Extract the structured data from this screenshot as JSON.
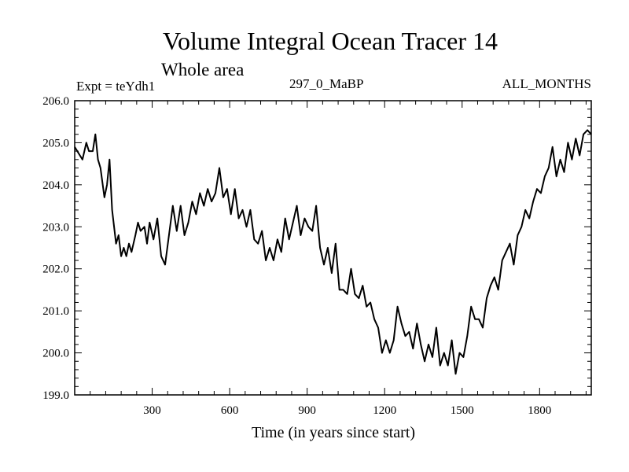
{
  "chart_data": {
    "type": "line",
    "title": "Volume Integral Ocean Tracer 14",
    "subtitle": "Whole area",
    "expt_label": "Expt = teYdh1",
    "period_label": "297_0_MaBP",
    "months_label": "ALL_MONTHS",
    "xlabel": "Time (in years since start)",
    "ylabel": "",
    "xlim": [
      0,
      2000
    ],
    "ylim": [
      199.0,
      206.0
    ],
    "xticks": [
      300,
      600,
      900,
      1200,
      1500,
      1800
    ],
    "xtick_labels": [
      "300",
      "600",
      "900",
      "1200",
      "1500",
      "1800"
    ],
    "yticks": [
      199.0,
      200.0,
      201.0,
      202.0,
      203.0,
      204.0,
      205.0,
      206.0
    ],
    "ytick_labels": [
      "199.0",
      "200.0",
      "201.0",
      "202.0",
      "203.0",
      "204.0",
      "205.0",
      "206.0"
    ],
    "series": [
      {
        "name": "Tracer 14",
        "x": [
          0,
          20,
          30,
          45,
          55,
          70,
          80,
          90,
          100,
          115,
          125,
          135,
          145,
          160,
          170,
          180,
          190,
          200,
          210,
          220,
          235,
          245,
          255,
          270,
          280,
          290,
          305,
          320,
          335,
          350,
          365,
          380,
          395,
          410,
          425,
          440,
          455,
          470,
          485,
          500,
          515,
          530,
          545,
          560,
          575,
          590,
          605,
          620,
          635,
          650,
          665,
          680,
          695,
          710,
          725,
          740,
          755,
          770,
          785,
          800,
          815,
          830,
          845,
          860,
          875,
          890,
          905,
          920,
          935,
          950,
          965,
          980,
          995,
          1010,
          1025,
          1040,
          1055,
          1070,
          1085,
          1100,
          1115,
          1130,
          1145,
          1160,
          1175,
          1190,
          1205,
          1220,
          1235,
          1250,
          1265,
          1280,
          1295,
          1310,
          1325,
          1340,
          1355,
          1370,
          1385,
          1400,
          1415,
          1430,
          1445,
          1460,
          1475,
          1490,
          1505,
          1520,
          1535,
          1550,
          1565,
          1580,
          1595,
          1610,
          1625,
          1640,
          1655,
          1670,
          1685,
          1700,
          1715,
          1730,
          1745,
          1760,
          1775,
          1790,
          1805,
          1820,
          1835,
          1850,
          1865,
          1880,
          1895,
          1910,
          1925,
          1940,
          1955,
          1970,
          1985,
          2000
        ],
        "y": [
          204.9,
          204.7,
          204.6,
          205.0,
          204.8,
          204.8,
          205.2,
          204.6,
          204.4,
          203.7,
          204.0,
          204.6,
          203.4,
          202.6,
          202.8,
          202.3,
          202.5,
          202.3,
          202.6,
          202.4,
          202.8,
          203.1,
          202.9,
          203.0,
          202.6,
          203.1,
          202.7,
          203.2,
          202.3,
          202.1,
          202.8,
          203.5,
          202.9,
          203.5,
          202.8,
          203.1,
          203.6,
          203.3,
          203.8,
          203.5,
          203.9,
          203.6,
          203.8,
          204.4,
          203.7,
          203.9,
          203.3,
          203.9,
          203.2,
          203.4,
          203.0,
          203.4,
          202.7,
          202.6,
          202.9,
          202.2,
          202.5,
          202.2,
          202.7,
          202.4,
          203.2,
          202.7,
          203.1,
          203.5,
          202.8,
          203.2,
          203.0,
          202.9,
          203.5,
          202.5,
          202.1,
          202.5,
          201.9,
          202.6,
          201.5,
          201.5,
          201.4,
          202.0,
          201.4,
          201.3,
          201.6,
          201.1,
          201.2,
          200.8,
          200.6,
          200.0,
          200.3,
          200.0,
          200.3,
          201.1,
          200.7,
          200.4,
          200.5,
          200.1,
          200.7,
          200.2,
          199.8,
          200.2,
          199.9,
          200.6,
          199.7,
          200.0,
          199.7,
          200.3,
          199.5,
          200.0,
          199.9,
          200.4,
          201.1,
          200.8,
          200.8,
          200.6,
          201.3,
          201.6,
          201.8,
          201.5,
          202.2,
          202.4,
          202.6,
          202.1,
          202.8,
          203.0,
          203.4,
          203.2,
          203.6,
          203.9,
          203.8,
          204.2,
          204.4,
          204.9,
          204.2,
          204.6,
          204.3,
          205.0,
          204.6,
          205.1,
          204.7,
          205.2,
          205.3,
          205.2
        ]
      }
    ]
  }
}
